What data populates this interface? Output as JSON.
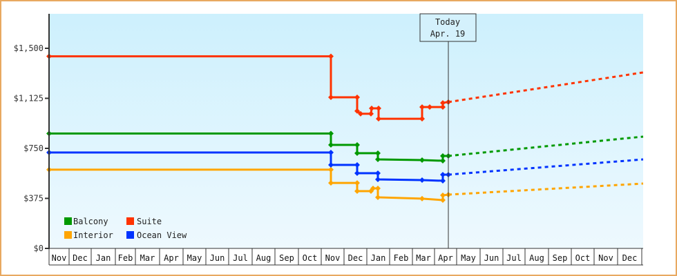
{
  "chart_data": {
    "type": "line",
    "title": "",
    "xlabel": "",
    "ylabel": "",
    "ylim": [
      0,
      1750
    ],
    "y_ticks": [
      {
        "label": "$0",
        "value": 0
      },
      {
        "label": "$375",
        "value": 375
      },
      {
        "label": "$750",
        "value": 750
      },
      {
        "label": "$1,125",
        "value": 1125
      },
      {
        "label": "$1,500",
        "value": 1500
      }
    ],
    "x_tick_labels": [
      "Nov",
      "Dec",
      "Jan",
      "Feb",
      "Mar",
      "Apr",
      "May",
      "Jun",
      "Jul",
      "Aug",
      "Sep",
      "Oct",
      "Nov",
      "Dec",
      "Jan",
      "Feb",
      "Mar",
      "Apr",
      "May",
      "Jun",
      "Jul",
      "Aug",
      "Sep",
      "Oct",
      "Nov",
      "Dec"
    ],
    "grid": false,
    "legend_position": "bottom-left inside plot",
    "today_marker": {
      "label": "Today",
      "date": "Apr. 19"
    },
    "series": [
      {
        "name": "Balcony",
        "color": "#009900",
        "history": [
          [
            "Nov",
            861
          ],
          [
            "Nov (yr2)",
            861
          ],
          [
            "Nov (yr2)",
            776
          ],
          [
            "Dec",
            776
          ],
          [
            "Dec",
            714
          ],
          [
            "Jan",
            714
          ],
          [
            "Jan",
            667
          ],
          [
            "Mar",
            662
          ],
          [
            "Apr",
            657
          ],
          [
            "Apr",
            693
          ],
          [
            "Apr 19",
            693
          ]
        ],
        "projection_end": 838
      },
      {
        "name": "Suite",
        "color": "#ff3300",
        "history": [
          [
            "Nov",
            1440
          ],
          [
            "Nov (yr2)",
            1440
          ],
          [
            "Nov (yr2)",
            1133
          ],
          [
            "Dec",
            1133
          ],
          [
            "Dec",
            1030
          ],
          [
            "Dec",
            1009
          ],
          [
            "Jan",
            1009
          ],
          [
            "Jan",
            1050
          ],
          [
            "Jan",
            1050
          ],
          [
            "Jan",
            972
          ],
          [
            "Mar",
            972
          ],
          [
            "Mar",
            1060
          ],
          [
            "Mar",
            1060
          ],
          [
            "Apr",
            1060
          ],
          [
            "Apr",
            1091
          ],
          [
            "Apr 19",
            1097
          ]
        ],
        "projection_end": 1319
      },
      {
        "name": "Interior",
        "color": "#ffa500",
        "history": [
          [
            "Nov",
            590
          ],
          [
            "Nov (yr2)",
            590
          ],
          [
            "Nov (yr2)",
            491
          ],
          [
            "Dec",
            491
          ],
          [
            "Dec",
            429
          ],
          [
            "Jan",
            429
          ],
          [
            "Jan",
            450
          ],
          [
            "Jan",
            450
          ],
          [
            "Jan",
            383
          ],
          [
            "Mar",
            373
          ],
          [
            "Apr",
            362
          ],
          [
            "Apr",
            398
          ],
          [
            "Apr 19",
            403
          ]
        ],
        "projection_end": 486
      },
      {
        "name": "Ocean View",
        "color": "#0033ff",
        "history": [
          [
            "Nov",
            719
          ],
          [
            "Nov (yr2)",
            719
          ],
          [
            "Nov (yr2)",
            626
          ],
          [
            "Dec",
            626
          ],
          [
            "Dec",
            564
          ],
          [
            "Jan",
            564
          ],
          [
            "Jan",
            517
          ],
          [
            "Mar",
            512
          ],
          [
            "Apr",
            507
          ],
          [
            "Apr",
            553
          ],
          [
            "Apr 19",
            553
          ]
        ],
        "projection_end": 667
      }
    ]
  },
  "legend": [
    {
      "label": "Balcony",
      "color": "#009900"
    },
    {
      "label": "Suite",
      "color": "#ff3300"
    },
    {
      "label": "Interior",
      "color": "#ffa500"
    },
    {
      "label": "Ocean View",
      "color": "#0033ff"
    }
  ],
  "today": {
    "line1": "Today",
    "line2": "Apr. 19"
  }
}
